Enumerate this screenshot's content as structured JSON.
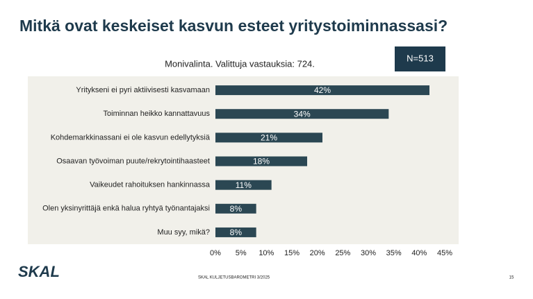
{
  "chart_data": {
    "type": "bar",
    "orientation": "horizontal",
    "title": "Mitkä ovat keskeiset kasvun esteet yritystoiminnassasi?",
    "subtitle": "Monivalinta. Valittuja vastauksia: 724.",
    "annotation": "N=513",
    "categories": [
      "Yritykseni ei pyri aktiivisesti kasvamaan",
      "Toiminnan heikko kannattavuus",
      "Kohdemarkkinassani ei ole kasvun edellytyksiä",
      "Osaavan työvoiman puute/rekrytointihaasteet",
      "Vaikeudet rahoituksen hankinnassa",
      "Olen yksinyrittäjä enkä halua ryhtyä työnantajaksi",
      "Muu syy, mikä?"
    ],
    "values": [
      42,
      34,
      21,
      18,
      11,
      8,
      8
    ],
    "value_labels": [
      "42%",
      "34%",
      "21%",
      "18%",
      "11%",
      "8%",
      "8%"
    ],
    "color": "#2b4753",
    "xlim": [
      0,
      45
    ],
    "xticks": [
      {
        "value": 0,
        "label": "0%"
      },
      {
        "value": 5,
        "label": "5%"
      },
      {
        "value": 10,
        "label": "10%"
      },
      {
        "value": 15,
        "label": "15%"
      },
      {
        "value": 20,
        "label": "20%"
      },
      {
        "value": 25,
        "label": "25%"
      },
      {
        "value": 30,
        "label": "30%"
      },
      {
        "value": 35,
        "label": "35%"
      },
      {
        "value": 40,
        "label": "40%"
      },
      {
        "value": 45,
        "label": "45%"
      }
    ],
    "grid": false
  },
  "footer": {
    "logo": "SKAL",
    "source": "SKAL KULJETUSBAROMETRI 3/2025",
    "page": "15"
  }
}
